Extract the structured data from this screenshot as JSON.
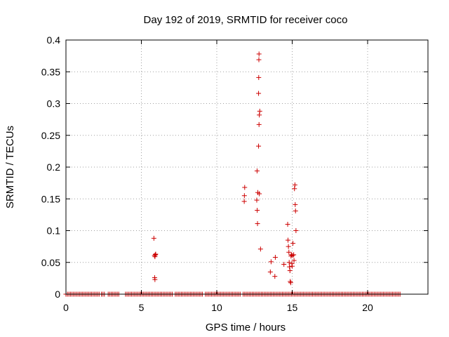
{
  "chart_data": {
    "type": "scatter",
    "title": "Day 192 of 2019, SRMTID for receiver coco",
    "xlabel": "GPS time / hours",
    "ylabel": "SRMTID / TECUs",
    "xlim": [
      0,
      24
    ],
    "ylim": [
      0,
      0.4
    ],
    "grid": true,
    "marker": "+",
    "color": "#cc0000",
    "xticks": [
      {
        "value": 0,
        "label": "0"
      },
      {
        "value": 5,
        "label": "5"
      },
      {
        "value": 10,
        "label": "10"
      },
      {
        "value": 15,
        "label": "15"
      },
      {
        "value": 20,
        "label": "20"
      }
    ],
    "yticks": [
      {
        "value": 0,
        "label": "0"
      },
      {
        "value": 0.05,
        "label": "0.05"
      },
      {
        "value": 0.1,
        "label": "0.1"
      },
      {
        "value": 0.15,
        "label": "0.15"
      },
      {
        "value": 0.2,
        "label": "0.2"
      },
      {
        "value": 0.25,
        "label": "0.25"
      },
      {
        "value": 0.3,
        "label": "0.3"
      },
      {
        "value": 0.35,
        "label": "0.35"
      },
      {
        "value": 0.4,
        "label": "0.4"
      }
    ],
    "baseline": {
      "y": 0,
      "segments": [
        [
          0.0,
          2.2
        ],
        [
          2.35,
          2.55
        ],
        [
          2.8,
          3.3
        ],
        [
          3.4,
          3.5
        ],
        [
          3.95,
          7.1
        ],
        [
          7.25,
          9.1
        ],
        [
          9.25,
          11.6
        ],
        [
          11.75,
          22.2
        ]
      ]
    },
    "series": [
      {
        "name": "SRMTID",
        "points": [
          [
            5.83,
            0.088
          ],
          [
            5.87,
            0.061
          ],
          [
            5.9,
            0.059
          ],
          [
            5.93,
            0.062
          ],
          [
            5.95,
            0.063
          ],
          [
            5.88,
            0.026
          ],
          [
            5.9,
            0.023
          ],
          [
            11.85,
            0.168
          ],
          [
            11.83,
            0.155
          ],
          [
            11.82,
            0.146
          ],
          [
            12.65,
            0.148
          ],
          [
            12.68,
            0.132
          ],
          [
            12.7,
            0.111
          ],
          [
            12.67,
            0.194
          ],
          [
            12.72,
            0.16
          ],
          [
            12.82,
            0.158
          ],
          [
            12.77,
            0.233
          ],
          [
            12.8,
            0.267
          ],
          [
            12.82,
            0.282
          ],
          [
            12.85,
            0.288
          ],
          [
            12.77,
            0.316
          ],
          [
            12.78,
            0.341
          ],
          [
            12.79,
            0.369
          ],
          [
            12.8,
            0.378
          ],
          [
            12.9,
            0.071
          ],
          [
            13.55,
            0.035
          ],
          [
            13.6,
            0.051
          ],
          [
            13.85,
            0.028
          ],
          [
            13.88,
            0.058
          ],
          [
            14.45,
            0.047
          ],
          [
            14.7,
            0.11
          ],
          [
            14.72,
            0.085
          ],
          [
            14.75,
            0.075
          ],
          [
            14.78,
            0.066
          ],
          [
            14.8,
            0.05
          ],
          [
            14.82,
            0.043
          ],
          [
            14.85,
            0.037
          ],
          [
            14.87,
            0.02
          ],
          [
            14.9,
            0.018
          ],
          [
            14.92,
            0.06
          ],
          [
            14.95,
            0.062
          ],
          [
            14.98,
            0.048
          ],
          [
            15.0,
            0.044
          ],
          [
            15.02,
            0.061
          ],
          [
            15.05,
            0.08
          ],
          [
            15.1,
            0.062
          ],
          [
            15.12,
            0.053
          ],
          [
            15.15,
            0.166
          ],
          [
            15.18,
            0.172
          ],
          [
            15.2,
            0.141
          ],
          [
            15.22,
            0.131
          ],
          [
            15.25,
            0.1
          ]
        ]
      }
    ]
  }
}
